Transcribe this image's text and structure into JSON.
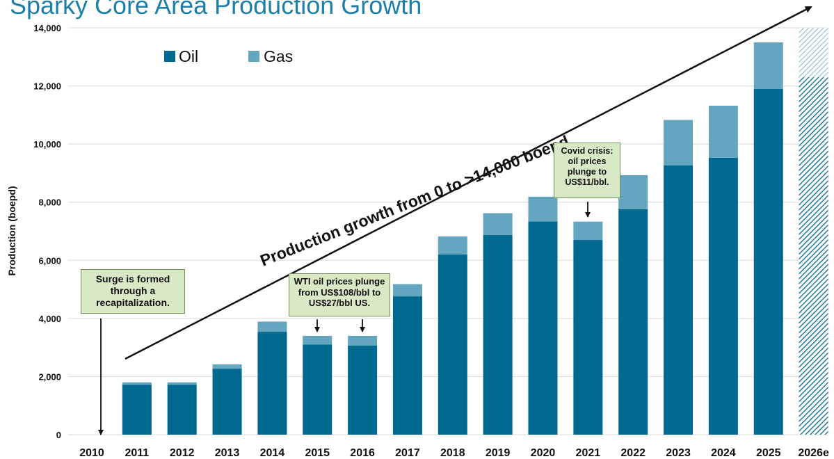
{
  "title": "Sparky Core Area Production Growth",
  "colors": {
    "oil": "#00698f",
    "gas": "#64a6bf",
    "grid": "#d9d9d9",
    "title": "#1d7fa8",
    "note_bg": "#d8e9c6"
  },
  "chart_data": {
    "type": "bar",
    "stacked": true,
    "categories": [
      "2010",
      "2011",
      "2012",
      "2013",
      "2014",
      "2015",
      "2016",
      "2017",
      "2018",
      "2019",
      "2020",
      "2021",
      "2022",
      "2023",
      "2024",
      "2025",
      "2026e"
    ],
    "series": [
      {
        "name": "Oil",
        "values": [
          0,
          1720,
          1720,
          2270,
          3540,
          3100,
          3070,
          4760,
          6200,
          6870,
          7340,
          6700,
          7760,
          9270,
          9530,
          11900,
          12300
        ]
      },
      {
        "name": "Gas",
        "values": [
          0,
          80,
          80,
          150,
          350,
          300,
          330,
          420,
          620,
          750,
          850,
          630,
          1170,
          1560,
          1790,
          1600,
          1700
        ]
      }
    ],
    "hatched_categories": [
      "2026e"
    ],
    "ylabel": "Production (boepd)",
    "xlabel": "",
    "ylim": [
      0,
      14000
    ],
    "yticks": [
      "0",
      "2,000",
      "4,000",
      "6,000",
      "8,000",
      "10,000",
      "12,000",
      "14,000"
    ],
    "grid": true,
    "legend": {
      "position": "top-left",
      "items": [
        "Oil",
        "Gas"
      ]
    },
    "arrow_label": "Production growth from 0 to >14,000 boepd",
    "annotations": [
      {
        "text": "Surge is formed through a recapitalization.",
        "target": "2010"
      },
      {
        "text": "WTI oil prices plunge from US$108/bbl to US$27/bbl US.",
        "target": [
          "2015",
          "2016"
        ]
      },
      {
        "text": "Covid crisis: oil prices plunge to US$11/bbl.",
        "target": "2021"
      }
    ]
  }
}
